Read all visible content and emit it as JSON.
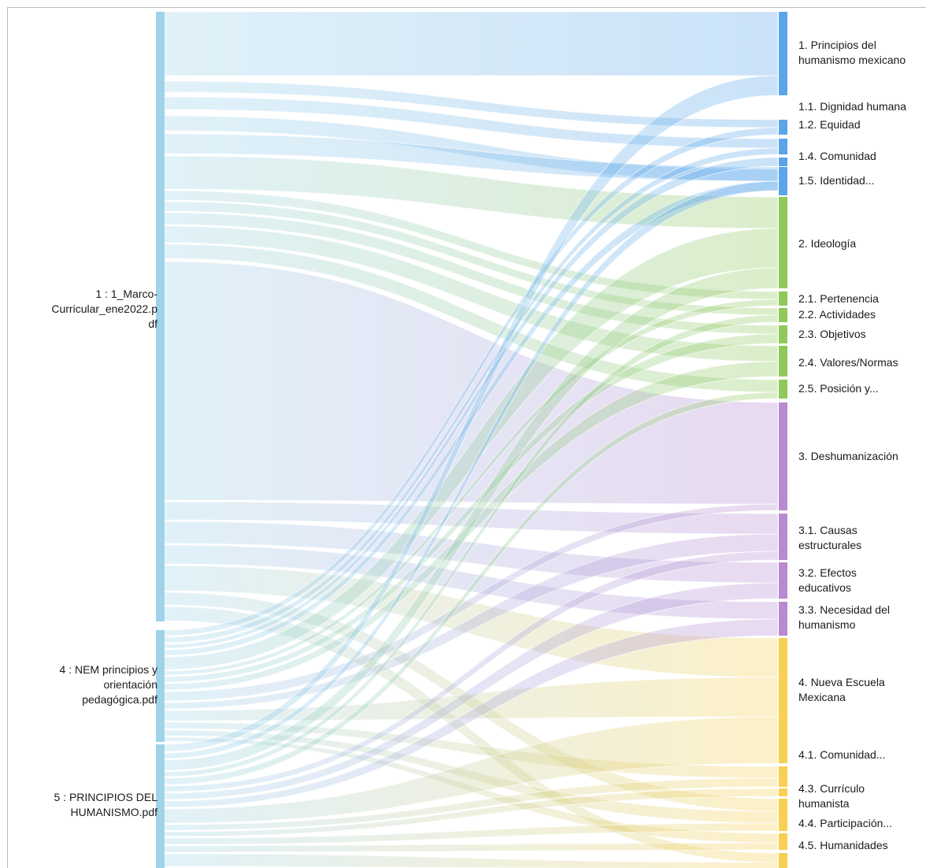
{
  "diagram": {
    "type": "sankey",
    "sources": [
      {
        "id": "s1",
        "label": "1 : 1_Marco-Curricular_ene2022.pdf",
        "lines": [
          "1 : 1_Marco-",
          "Curricular_ene2022.p",
          "df"
        ],
        "color": "#9fd3ea"
      },
      {
        "id": "s4",
        "label": "4 : NEM principios y orientación pedagógica.pdf",
        "lines": [
          "4 : NEM principios y",
          "orientación",
          "pedagógica.pdf"
        ],
        "color": "#9fd3ea"
      },
      {
        "id": "s5",
        "label": "5 : PRINCIPIOS DEL HUMANISMO.pdf",
        "lines": [
          "5 : PRINCIPIOS DEL",
          "HUMANISMO.pdf"
        ],
        "color": "#9fd3ea"
      }
    ],
    "targets": [
      {
        "id": "t1",
        "lines": [
          "1. Principios del",
          "humanismo mexicano"
        ],
        "color": "#5aa5ea"
      },
      {
        "id": "t11",
        "lines": [
          "1.1. Dignidad humana"
        ],
        "color": "#5aa5ea"
      },
      {
        "id": "t12",
        "lines": [
          "1.2. Equidad"
        ],
        "color": "#5aa5ea"
      },
      {
        "id": "t13",
        "lines": [],
        "color": "#5aa5ea"
      },
      {
        "id": "t14",
        "lines": [
          "1.4. Comunidad"
        ],
        "color": "#5aa5ea"
      },
      {
        "id": "t15",
        "lines": [
          "1.5. Identidad..."
        ],
        "color": "#5aa5ea"
      },
      {
        "id": "t2",
        "lines": [
          "2. Ideología"
        ],
        "color": "#8fc95a"
      },
      {
        "id": "t21",
        "lines": [
          "2.1. Pertenencia"
        ],
        "color": "#8fc95a"
      },
      {
        "id": "t22",
        "lines": [
          "2.2. Actividades"
        ],
        "color": "#8fc95a"
      },
      {
        "id": "t23",
        "lines": [
          "2.3. Objetivos"
        ],
        "color": "#8fc95a"
      },
      {
        "id": "t24",
        "lines": [
          "2.4. Valores/Normas"
        ],
        "color": "#8fc95a"
      },
      {
        "id": "t25",
        "lines": [
          "2.5. Posición y..."
        ],
        "color": "#8fc95a"
      },
      {
        "id": "t3",
        "lines": [
          "3. Deshumanización"
        ],
        "color": "#b98ad1"
      },
      {
        "id": "t31",
        "lines": [
          "3.1. Causas",
          "estructurales"
        ],
        "color": "#b98ad1"
      },
      {
        "id": "t32",
        "lines": [
          "3.2. Efectos",
          "educativos"
        ],
        "color": "#b98ad1"
      },
      {
        "id": "t33",
        "lines": [
          "3.3. Necesidad del",
          "humanismo"
        ],
        "color": "#b98ad1"
      },
      {
        "id": "t4",
        "lines": [
          "4. Nueva Escuela",
          "Mexicana"
        ],
        "color": "#f7cf52"
      },
      {
        "id": "t41",
        "lines": [
          "4.1. Comunidad..."
        ],
        "color": "#f7cf52"
      },
      {
        "id": "t42",
        "lines": [],
        "color": "#f7cf52"
      },
      {
        "id": "t43",
        "lines": [
          "4.3. Currículo",
          "humanista"
        ],
        "color": "#f7cf52"
      },
      {
        "id": "t44",
        "lines": [
          "4.4. Participación..."
        ],
        "color": "#f7cf52"
      },
      {
        "id": "t45",
        "lines": [
          "4.5. Humanidades"
        ],
        "color": "#f7cf52"
      }
    ]
  }
}
